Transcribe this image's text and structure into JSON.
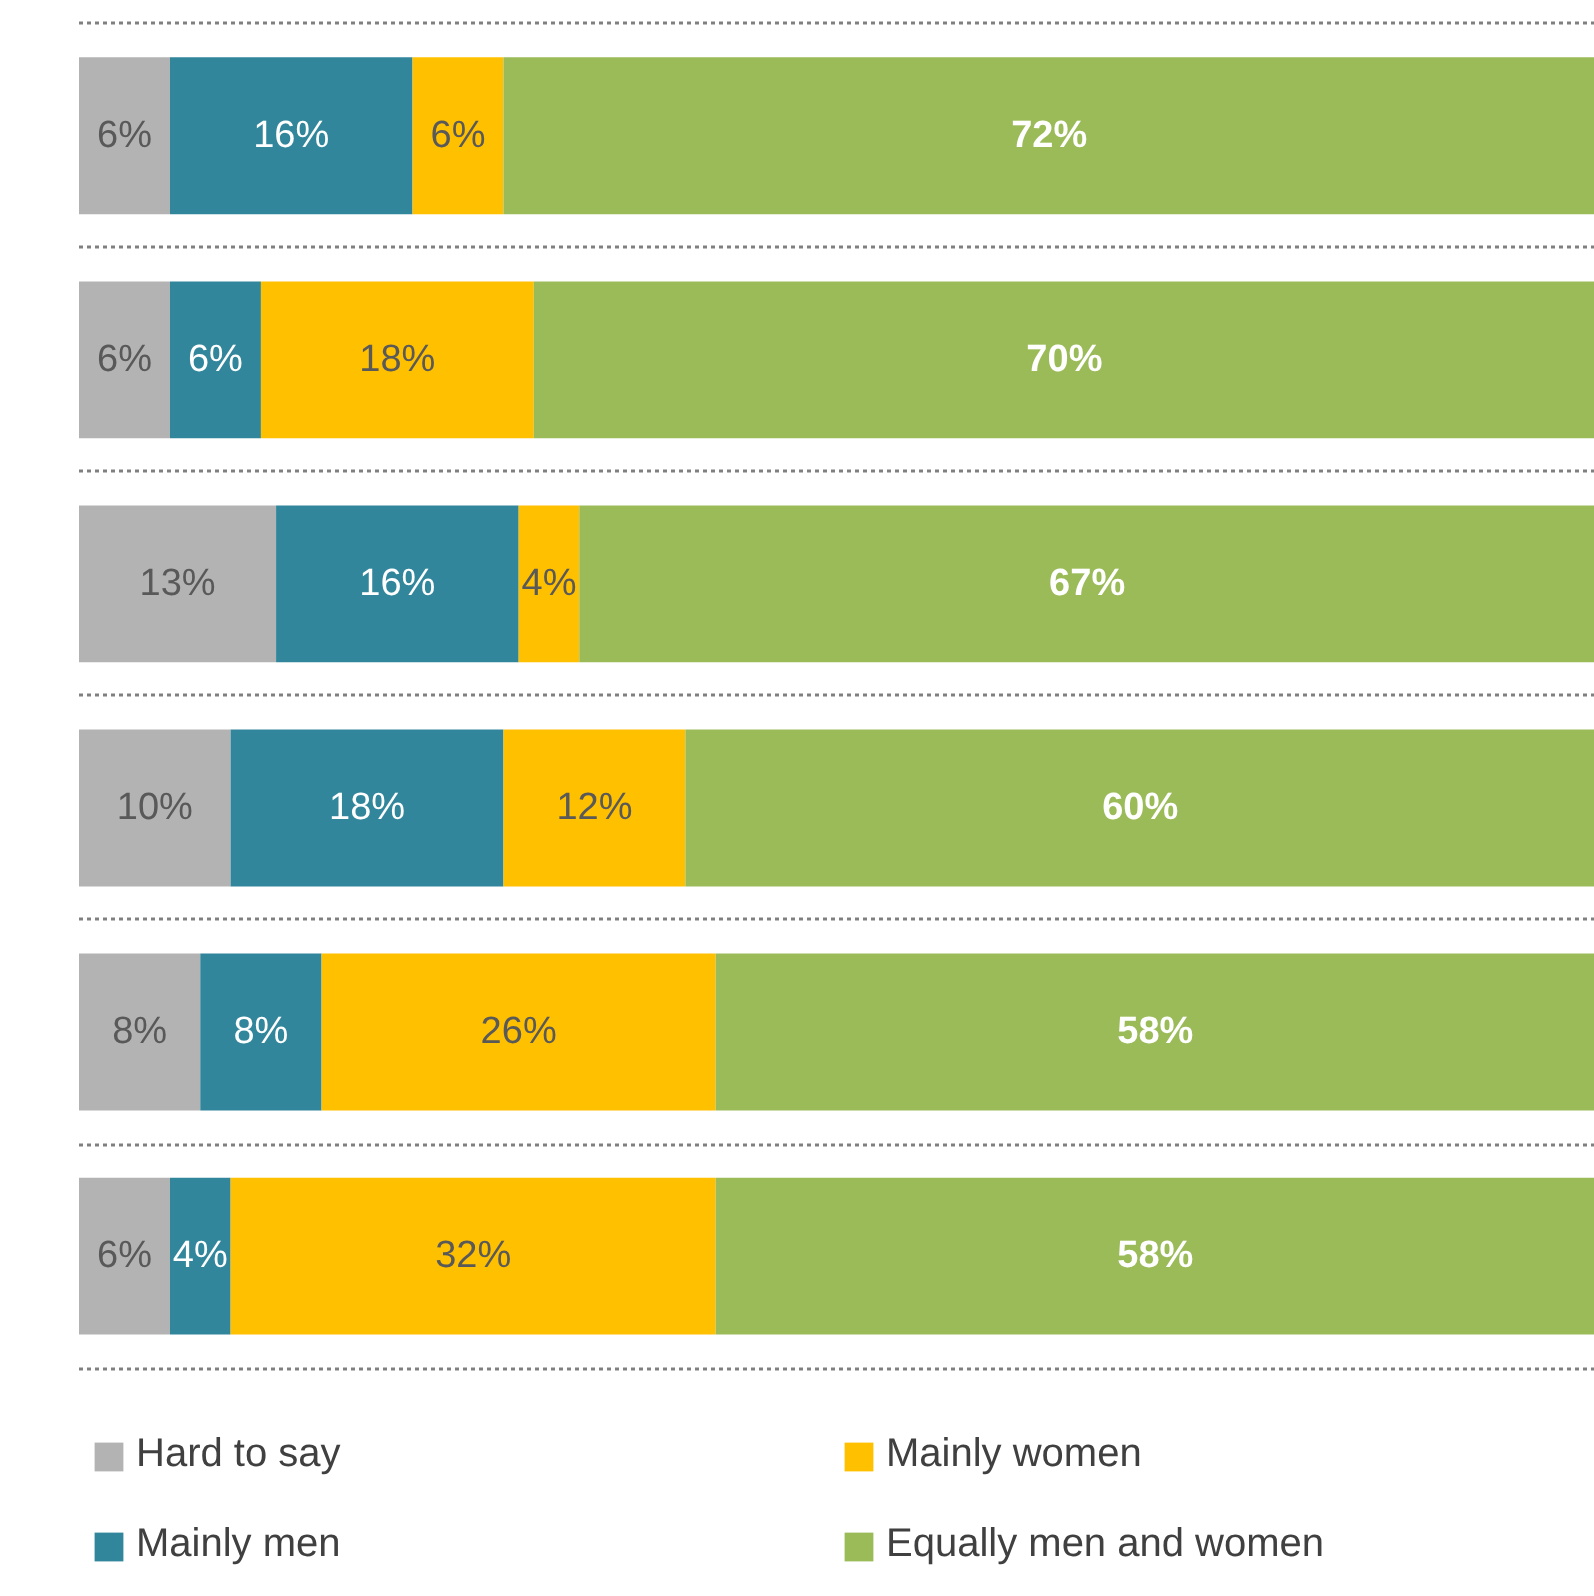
{
  "chart_data": {
    "type": "bar",
    "orientation": "horizontal",
    "stacked": true,
    "categories": [
      null,
      null,
      null,
      null,
      null,
      null
    ],
    "series": [
      {
        "name": "Hard to say",
        "color": "#b3b3b3",
        "values": [
          6,
          6,
          13,
          10,
          8,
          6
        ],
        "value_labels": [
          "6%",
          "6%",
          "13%",
          "10%",
          "8%",
          "6%"
        ]
      },
      {
        "name": "Mainly men",
        "color": "#31869b",
        "values": [
          16,
          6,
          16,
          18,
          8,
          4
        ],
        "value_labels": [
          "16%",
          "6%",
          "16%",
          "18%",
          "8%",
          "4%"
        ]
      },
      {
        "name": "Mainly women",
        "color": "#ffc000",
        "values": [
          6,
          18,
          4,
          12,
          26,
          32
        ],
        "value_labels": [
          "6%",
          "18%",
          "4%",
          "12%",
          "26%",
          "32%"
        ]
      },
      {
        "name": "Equally men and women",
        "color": "#9bbb59",
        "values": [
          72,
          70,
          67,
          60,
          58,
          58
        ],
        "value_labels": [
          "72%",
          "70%",
          "67%",
          "60%",
          "58%",
          "58%"
        ]
      }
    ],
    "tick_labels": false,
    "grid": "y",
    "legend": "bottom"
  }
}
